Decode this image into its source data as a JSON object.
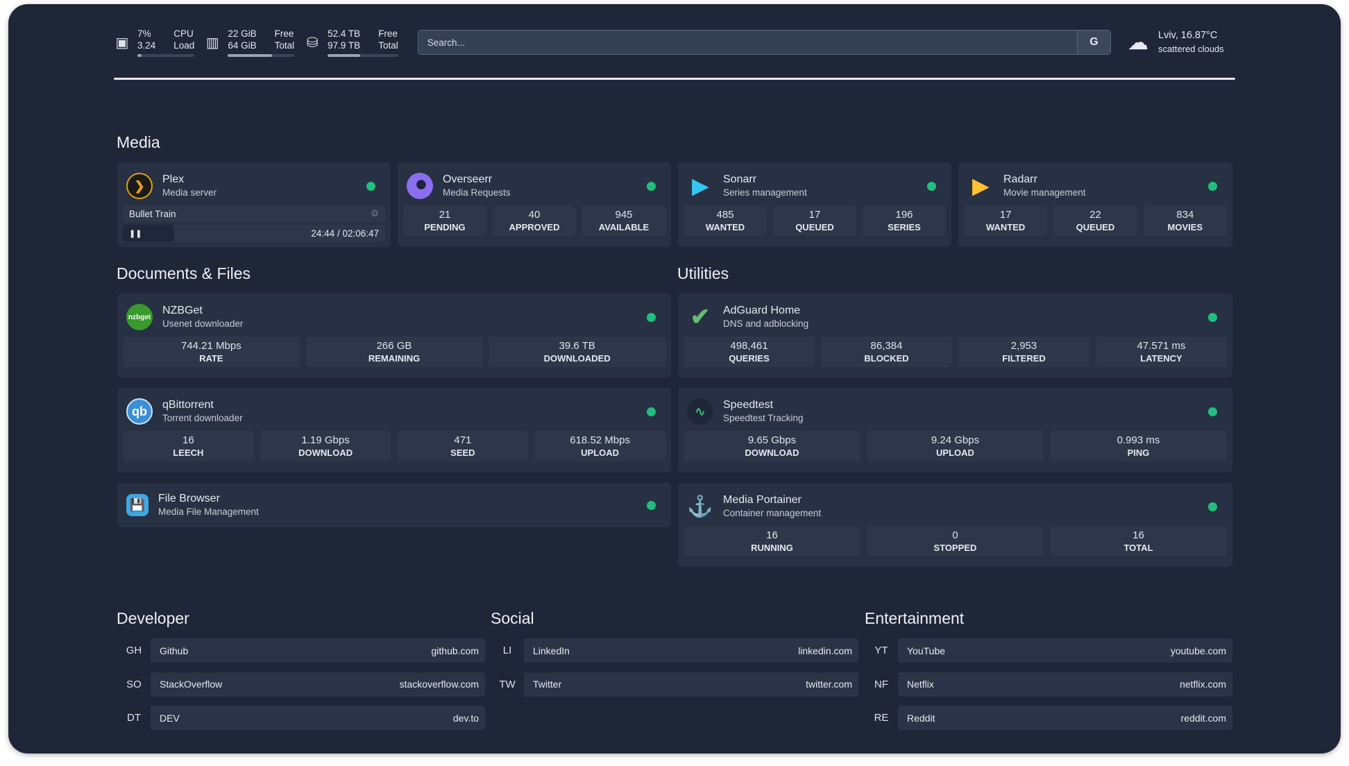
{
  "top": {
    "cpu": {
      "value": "7%",
      "load": "3.24",
      "label1": "CPU",
      "label2": "Load",
      "percent": 7
    },
    "ram": {
      "free": "22 GiB",
      "total": "64 GiB",
      "label1": "Free",
      "label2": "Total",
      "percent": 66
    },
    "disk": {
      "free": "52.4 TB",
      "total": "97.9 TB",
      "label1": "Free",
      "label2": "Total",
      "percent": 46
    },
    "search_placeholder": "Search...",
    "search_button": "G",
    "weather": {
      "location": "Lviv, 16.87°C",
      "desc": "scattered clouds"
    }
  },
  "sections": {
    "media": "Media",
    "docs": "Documents & Files",
    "utilities": "Utilities",
    "developer": "Developer",
    "social": "Social",
    "entertainment": "Entertainment"
  },
  "plex": {
    "name": "Plex",
    "desc": "Media server",
    "title": "Bullet Train",
    "time": "24:44 / 02:06:47",
    "progress": 20
  },
  "overseerr": {
    "name": "Overseerr",
    "desc": "Media Requests",
    "stats": [
      [
        "21",
        "PENDING"
      ],
      [
        "40",
        "APPROVED"
      ],
      [
        "945",
        "AVAILABLE"
      ]
    ]
  },
  "sonarr": {
    "name": "Sonarr",
    "desc": "Series management",
    "stats": [
      [
        "485",
        "WANTED"
      ],
      [
        "17",
        "QUEUED"
      ],
      [
        "196",
        "SERIES"
      ]
    ]
  },
  "radarr": {
    "name": "Radarr",
    "desc": "Movie management",
    "stats": [
      [
        "17",
        "WANTED"
      ],
      [
        "22",
        "QUEUED"
      ],
      [
        "834",
        "MOVIES"
      ]
    ]
  },
  "nzbget": {
    "name": "NZBGet",
    "desc": "Usenet downloader",
    "logo": "nzbget",
    "stats": [
      [
        "744.21 Mbps",
        "RATE"
      ],
      [
        "266 GB",
        "REMAINING"
      ],
      [
        "39.6 TB",
        "DOWNLOADED"
      ]
    ]
  },
  "qbit": {
    "name": "qBittorrent",
    "desc": "Torrent downloader",
    "logo": "qb",
    "stats": [
      [
        "16",
        "LEECH"
      ],
      [
        "1.19 Gbps",
        "DOWNLOAD"
      ],
      [
        "471",
        "SEED"
      ],
      [
        "618.52 Mbps",
        "UPLOAD"
      ]
    ]
  },
  "filebrowser": {
    "name": "File Browser",
    "desc": "Media File Management"
  },
  "adguard": {
    "name": "AdGuard Home",
    "desc": "DNS and adblocking",
    "stats": [
      [
        "498,461",
        "QUERIES"
      ],
      [
        "86,384",
        "BLOCKED"
      ],
      [
        "2,953",
        "FILTERED"
      ],
      [
        "47.571 ms",
        "LATENCY"
      ]
    ]
  },
  "speedtest": {
    "name": "Speedtest",
    "desc": "Speedtest Tracking",
    "stats": [
      [
        "9.65 Gbps",
        "DOWNLOAD"
      ],
      [
        "9.24 Gbps",
        "UPLOAD"
      ],
      [
        "0.993 ms",
        "PING"
      ]
    ]
  },
  "portainer": {
    "name": "Media Portainer",
    "desc": "Container management",
    "stats": [
      [
        "16",
        "RUNNING"
      ],
      [
        "0",
        "STOPPED"
      ],
      [
        "16",
        "TOTAL"
      ]
    ]
  },
  "bookmarks": {
    "developer": [
      [
        "GH",
        "Github",
        "github.com"
      ],
      [
        "SO",
        "StackOverflow",
        "stackoverflow.com"
      ],
      [
        "DT",
        "DEV",
        "dev.to"
      ]
    ],
    "social": [
      [
        "LI",
        "LinkedIn",
        "linkedin.com"
      ],
      [
        "TW",
        "Twitter",
        "twitter.com"
      ]
    ],
    "entertainment": [
      [
        "YT",
        "YouTube",
        "youtube.com"
      ],
      [
        "NF",
        "Netflix",
        "netflix.com"
      ],
      [
        "RE",
        "Reddit",
        "reddit.com"
      ]
    ]
  },
  "colors": {
    "background": "#1f2638",
    "card": "#283143",
    "status": "#1fbf7f"
  }
}
